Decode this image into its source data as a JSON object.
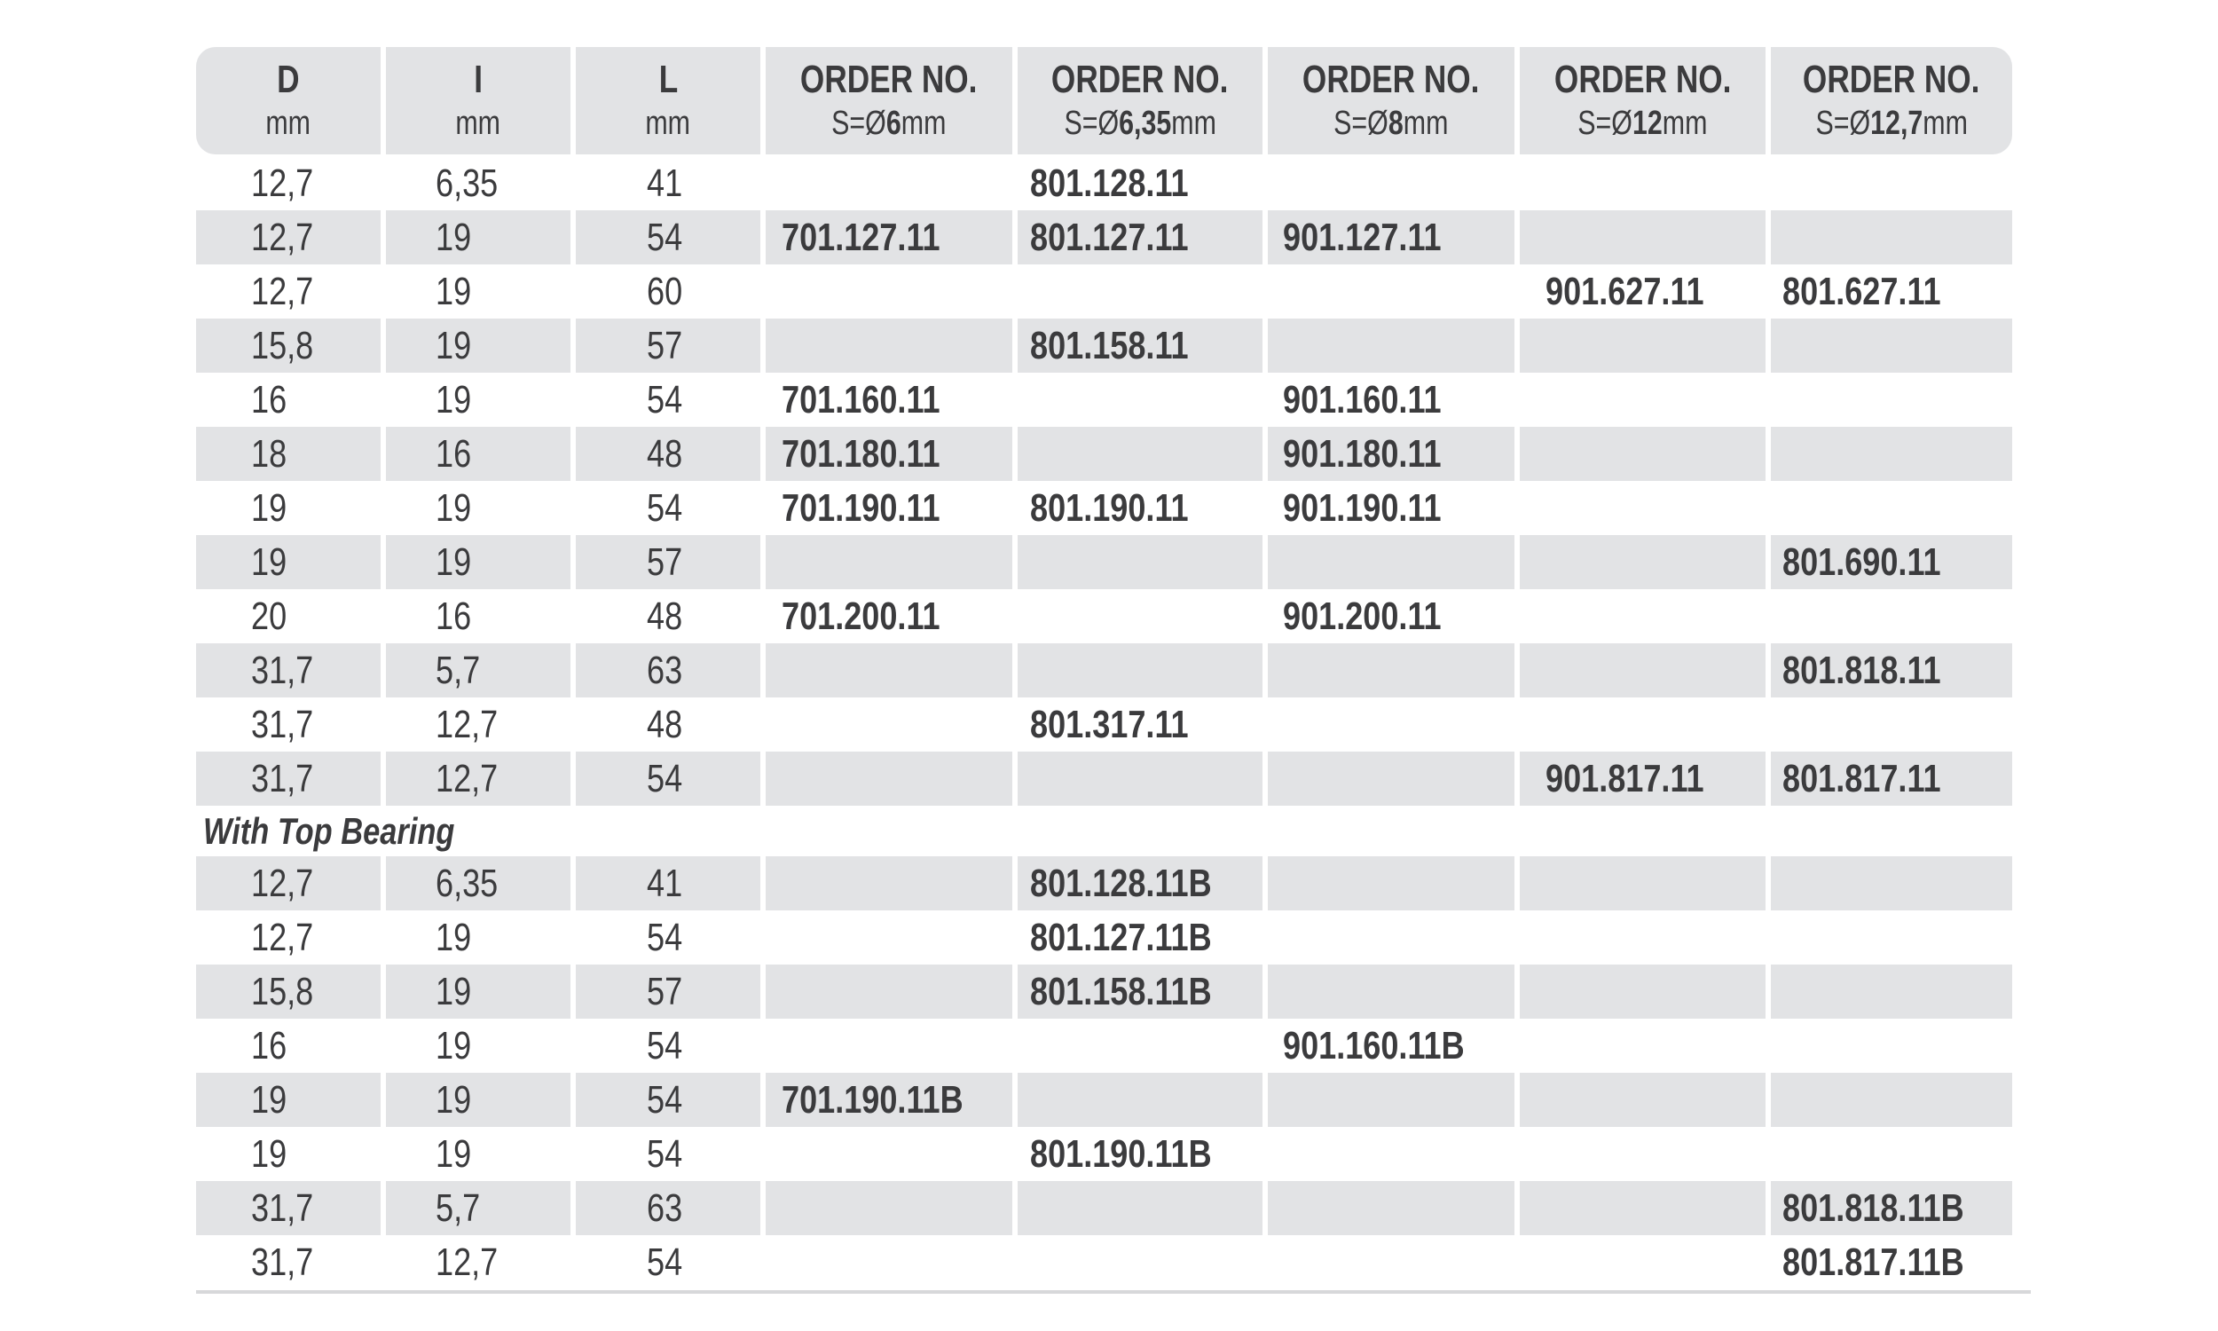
{
  "columns": [
    {
      "title": "D",
      "sub_pre": "mm",
      "sub_bold": "",
      "sub_post": ""
    },
    {
      "title": "I",
      "sub_pre": "mm",
      "sub_bold": "",
      "sub_post": ""
    },
    {
      "title": "L",
      "sub_pre": "mm",
      "sub_bold": "",
      "sub_post": ""
    },
    {
      "title": "ORDER NO.",
      "sub_pre": "S=Ø",
      "sub_bold": "6",
      "sub_post": "mm"
    },
    {
      "title": "ORDER NO.",
      "sub_pre": "S=Ø",
      "sub_bold": "6,35",
      "sub_post": "mm"
    },
    {
      "title": "ORDER NO.",
      "sub_pre": "S=Ø",
      "sub_bold": "8",
      "sub_post": "mm"
    },
    {
      "title": "ORDER NO.",
      "sub_pre": "S=Ø",
      "sub_bold": "12",
      "sub_post": "mm"
    },
    {
      "title": "ORDER NO.",
      "sub_pre": "S=Ø",
      "sub_bold": "12,7",
      "sub_post": "mm"
    }
  ],
  "rows": [
    [
      "12,7",
      "6,35",
      "41",
      "",
      "801.128.11",
      "",
      "",
      ""
    ],
    [
      "12,7",
      "19",
      "54",
      "701.127.11",
      "801.127.11",
      "901.127.11",
      "",
      ""
    ],
    [
      "12,7",
      "19",
      "60",
      "",
      "",
      "",
      "901.627.11",
      "801.627.11"
    ],
    [
      "15,8",
      "19",
      "57",
      "",
      "801.158.11",
      "",
      "",
      ""
    ],
    [
      "16",
      "19",
      "54",
      "701.160.11",
      "",
      "901.160.11",
      "",
      ""
    ],
    [
      "18",
      "16",
      "48",
      "701.180.11",
      "",
      "901.180.11",
      "",
      ""
    ],
    [
      "19",
      "19",
      "54",
      "701.190.11",
      "801.190.11",
      "901.190.11",
      "",
      ""
    ],
    [
      "19",
      "19",
      "57",
      "",
      "",
      "",
      "",
      "801.690.11"
    ],
    [
      "20",
      "16",
      "48",
      "701.200.11",
      "",
      "901.200.11",
      "",
      ""
    ],
    [
      "31,7",
      "5,7",
      "63",
      "",
      "",
      "",
      "",
      "801.818.11"
    ],
    [
      "31,7",
      "12,7",
      "48",
      "",
      "801.317.11",
      "",
      "",
      ""
    ],
    [
      "31,7",
      "12,7",
      "54",
      "",
      "",
      "",
      "901.817.11",
      "801.817.11"
    ]
  ],
  "section_title": "With Top Bearing",
  "bearing_rows": [
    [
      "12,7",
      "6,35",
      "41",
      "",
      "801.128.11B",
      "",
      "",
      ""
    ],
    [
      "12,7",
      "19",
      "54",
      "",
      "801.127.11B",
      "",
      "",
      ""
    ],
    [
      "15,8",
      "19",
      "57",
      "",
      "801.158.11B",
      "",
      "",
      ""
    ],
    [
      "16",
      "19",
      "54",
      "",
      "",
      "901.160.11B",
      "",
      ""
    ],
    [
      "19",
      "19",
      "54",
      "701.190.11B",
      "",
      "",
      "",
      ""
    ],
    [
      "19",
      "19",
      "54",
      "",
      "801.190.11B",
      "",
      "",
      ""
    ],
    [
      "31,7",
      "5,7",
      "63",
      "",
      "",
      "",
      "",
      "801.818.11B"
    ],
    [
      "31,7",
      "12,7",
      "54",
      "",
      "",
      "",
      "",
      "801.817.11B"
    ]
  ],
  "colors": {
    "row_shade": "#e2e3e5",
    "text": "#3b3b3d"
  }
}
